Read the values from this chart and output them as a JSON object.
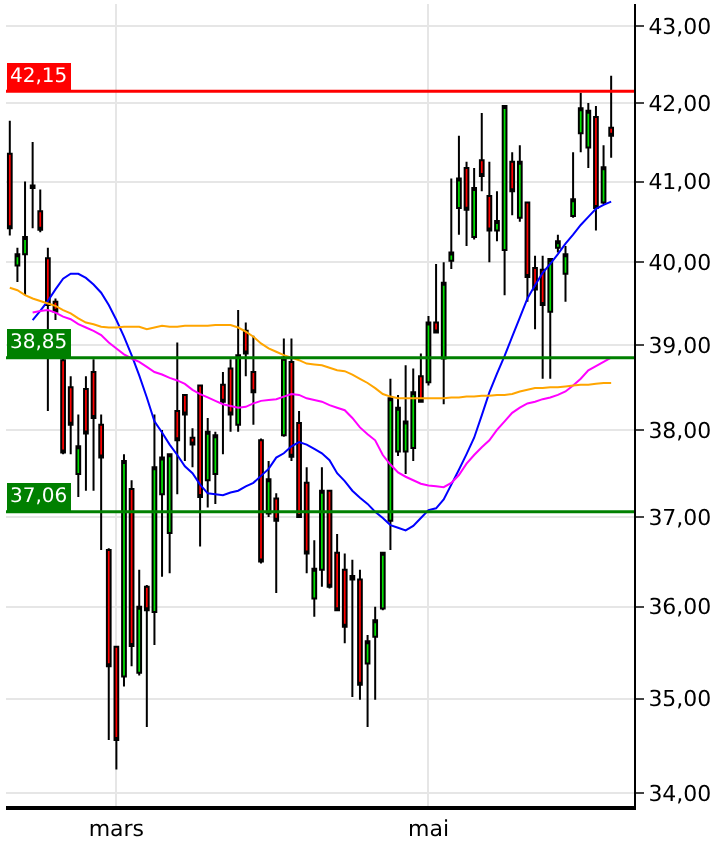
{
  "chart_data": {
    "type": "candlestick",
    "log": true,
    "grid": true,
    "categories": [
      null,
      null,
      null,
      null,
      null,
      null,
      null,
      null,
      null,
      null,
      null,
      null,
      null,
      null,
      "mars",
      null,
      null,
      null,
      null,
      null,
      null,
      null,
      null,
      null,
      null,
      null,
      null,
      null,
      null,
      null,
      null,
      null,
      null,
      null,
      null,
      null,
      null,
      null,
      null,
      null,
      null,
      null,
      null,
      null,
      null,
      null,
      null,
      null,
      null,
      null,
      null,
      null,
      null,
      null,
      null,
      "mai",
      null,
      null,
      null,
      null,
      null,
      null,
      null,
      null,
      null,
      null,
      null,
      null,
      null,
      null,
      null,
      null,
      null,
      null,
      null,
      null,
      null,
      null,
      null,
      null
    ],
    "ohlc": [
      [
        41.35,
        41.77,
        40.33,
        40.42
      ],
      [
        39.96,
        40.18,
        39.76,
        40.1
      ],
      [
        40.1,
        41.0,
        39.6,
        40.31
      ],
      [
        40.95,
        41.5,
        40.42,
        40.92
      ],
      [
        40.63,
        40.9,
        40.37,
        40.4
      ],
      [
        40.05,
        40.18,
        38.22,
        39.48
      ],
      [
        39.52,
        39.56,
        39.3,
        39.4
      ],
      [
        38.82,
        38.85,
        37.72,
        37.74
      ],
      [
        38.5,
        38.63,
        37.72,
        38.06
      ],
      [
        37.49,
        38.18,
        37.23,
        37.81
      ],
      [
        38.48,
        38.63,
        37.3,
        37.96
      ],
      [
        38.68,
        38.83,
        37.3,
        38.14
      ],
      [
        38.06,
        38.18,
        36.63,
        37.68
      ],
      [
        36.63,
        36.65,
        34.56,
        35.35
      ],
      [
        35.56,
        35.56,
        34.25,
        34.56
      ],
      [
        35.24,
        37.72,
        35.13,
        37.64
      ],
      [
        37.32,
        37.42,
        35.35,
        35.57
      ],
      [
        35.28,
        36.41,
        35.25,
        36.0
      ],
      [
        36.22,
        36.24,
        34.7,
        35.96
      ],
      [
        35.94,
        38.18,
        35.58,
        37.57
      ],
      [
        37.26,
        38.0,
        36.33,
        37.68
      ],
      [
        36.82,
        37.72,
        36.37,
        37.72
      ],
      [
        38.22,
        39.03,
        37.26,
        37.88
      ],
      [
        38.41,
        38.41,
        37.64,
        38.18
      ],
      [
        37.91,
        38.02,
        37.57,
        37.83
      ],
      [
        38.52,
        38.52,
        36.67,
        37.23
      ],
      [
        37.42,
        38.14,
        37.11,
        37.98
      ],
      [
        37.49,
        37.98,
        37.15,
        37.94
      ],
      [
        38.53,
        38.68,
        37.72,
        38.33
      ],
      [
        38.72,
        38.83,
        37.98,
        38.18
      ],
      [
        38.06,
        39.42,
        37.98,
        38.88
      ],
      [
        39.17,
        39.27,
        38.63,
        38.9
      ],
      [
        38.68,
        39.11,
        38.06,
        38.44
      ],
      [
        37.88,
        37.9,
        36.48,
        36.5
      ],
      [
        37.04,
        37.64,
        37.0,
        37.43
      ],
      [
        37.21,
        37.27,
        36.15,
        36.96
      ],
      [
        37.94,
        39.08,
        37.92,
        38.85
      ],
      [
        38.8,
        39.08,
        37.64,
        37.69
      ],
      [
        38.08,
        38.22,
        37.0,
        37.0
      ],
      [
        37.39,
        37.57,
        36.37,
        36.59
      ],
      [
        36.09,
        36.74,
        35.89,
        36.42
      ],
      [
        36.41,
        37.57,
        36.22,
        37.3
      ],
      [
        37.3,
        37.3,
        36.2,
        36.22
      ],
      [
        36.6,
        36.81,
        35.96,
        35.96
      ],
      [
        36.41,
        36.59,
        35.6,
        35.78
      ],
      [
        36.34,
        36.52,
        35.02,
        36.3
      ],
      [
        36.3,
        36.41,
        34.99,
        35.15
      ],
      [
        35.38,
        35.69,
        34.7,
        35.62
      ],
      [
        35.67,
        36.0,
        34.99,
        35.85
      ],
      [
        35.98,
        36.6,
        35.96,
        36.6
      ],
      [
        36.96,
        38.6,
        36.63,
        38.37
      ],
      [
        37.75,
        38.41,
        37.7,
        38.26
      ],
      [
        37.75,
        38.76,
        37.49,
        38.1
      ],
      [
        37.79,
        38.72,
        37.64,
        38.44
      ],
      [
        38.63,
        38.9,
        38.33,
        38.33
      ],
      [
        38.56,
        39.35,
        38.52,
        39.27
      ],
      [
        39.27,
        39.98,
        39.15,
        39.15
      ],
      [
        38.84,
        40.0,
        38.3,
        39.75
      ],
      [
        40.02,
        41.04,
        39.92,
        40.12
      ],
      [
        40.67,
        41.58,
        40.34,
        41.04
      ],
      [
        41.17,
        41.25,
        40.2,
        40.65
      ],
      [
        40.31,
        41.17,
        40.28,
        40.92
      ],
      [
        41.27,
        41.87,
        40.88,
        41.07
      ],
      [
        40.82,
        41.25,
        40.0,
        40.39
      ],
      [
        40.39,
        40.88,
        40.26,
        40.51
      ],
      [
        40.15,
        41.96,
        39.6,
        41.96
      ],
      [
        41.25,
        41.37,
        40.58,
        40.88
      ],
      [
        40.55,
        41.46,
        40.5,
        41.25
      ],
      [
        40.74,
        40.74,
        39.52,
        39.82
      ],
      [
        39.93,
        40.08,
        39.19,
        39.67
      ],
      [
        39.91,
        40.08,
        38.6,
        39.48
      ],
      [
        39.4,
        40.04,
        38.6,
        40.04
      ],
      [
        40.18,
        40.34,
        40.12,
        40.26
      ],
      [
        39.86,
        40.2,
        39.52,
        40.1
      ],
      [
        40.57,
        41.37,
        40.55,
        40.78
      ],
      [
        41.61,
        42.13,
        41.37,
        41.93
      ],
      [
        41.43,
        42.0,
        41.17,
        41.9
      ],
      [
        41.82,
        41.96,
        40.39,
        40.67
      ],
      [
        40.74,
        41.46,
        40.72,
        41.18
      ],
      [
        41.68,
        42.35,
        41.3,
        41.58
      ]
    ],
    "series": [
      {
        "type": "line",
        "color": "#0000ff",
        "values": [
          null,
          null,
          null,
          39.3,
          39.41,
          39.53,
          39.67,
          39.8,
          39.86,
          39.86,
          39.81,
          39.73,
          39.63,
          39.48,
          39.3,
          39.1,
          38.88,
          38.64,
          38.38,
          38.1,
          37.97,
          37.83,
          37.71,
          37.58,
          37.5,
          37.37,
          37.27,
          37.26,
          37.25,
          37.28,
          37.3,
          37.35,
          37.39,
          37.47,
          37.55,
          37.68,
          37.73,
          37.81,
          37.86,
          37.83,
          37.78,
          37.73,
          37.65,
          37.5,
          37.41,
          37.3,
          37.22,
          37.15,
          37.06,
          36.99,
          36.91,
          36.88,
          36.85,
          36.9,
          36.99,
          37.08,
          37.1,
          37.2,
          37.37,
          37.54,
          37.72,
          37.91,
          38.17,
          38.44,
          38.66,
          38.87,
          39.1,
          39.33,
          39.56,
          39.72,
          39.87,
          39.98,
          40.1,
          40.23,
          40.34,
          40.46,
          40.56,
          40.66,
          40.71,
          40.75
        ]
      },
      {
        "type": "line",
        "color": "#ff00ff",
        "values": [
          null,
          null,
          null,
          39.39,
          39.41,
          39.42,
          39.39,
          39.34,
          39.31,
          39.25,
          39.21,
          39.17,
          39.12,
          39.03,
          38.96,
          38.89,
          38.84,
          38.8,
          38.74,
          38.68,
          38.65,
          38.61,
          38.58,
          38.54,
          38.47,
          38.42,
          38.38,
          38.34,
          38.3,
          38.28,
          38.26,
          38.27,
          38.31,
          38.34,
          38.35,
          38.36,
          38.39,
          38.42,
          38.41,
          38.37,
          38.35,
          38.33,
          38.29,
          38.26,
          38.23,
          38.14,
          38.03,
          37.95,
          37.88,
          37.71,
          37.6,
          37.51,
          37.46,
          37.42,
          37.38,
          37.36,
          37.35,
          37.34,
          37.39,
          37.48,
          37.61,
          37.71,
          37.8,
          37.88,
          38.0,
          38.1,
          38.2,
          38.26,
          38.31,
          38.33,
          38.36,
          38.38,
          38.41,
          38.45,
          38.52,
          38.6,
          38.7,
          38.75,
          38.8,
          38.85
        ]
      },
      {
        "type": "line",
        "color": "#ffa500",
        "values": [
          39.69,
          39.66,
          39.6,
          39.56,
          39.53,
          39.5,
          39.47,
          39.42,
          39.38,
          39.32,
          39.27,
          39.25,
          39.22,
          39.21,
          39.21,
          39.22,
          39.22,
          39.22,
          39.19,
          39.21,
          39.23,
          39.22,
          39.22,
          39.23,
          39.23,
          39.23,
          39.23,
          39.24,
          39.24,
          39.24,
          39.21,
          39.16,
          39.1,
          39.02,
          38.96,
          38.92,
          38.88,
          38.85,
          38.82,
          38.78,
          38.77,
          38.76,
          38.73,
          38.7,
          38.69,
          38.65,
          38.6,
          38.55,
          38.49,
          38.42,
          38.39,
          38.37,
          38.37,
          38.37,
          38.37,
          38.37,
          38.37,
          38.37,
          38.38,
          38.38,
          38.39,
          38.39,
          38.4,
          38.4,
          38.41,
          38.41,
          38.42,
          38.45,
          38.47,
          38.49,
          38.49,
          38.5,
          38.5,
          38.51,
          38.52,
          38.53,
          38.53,
          38.54,
          38.55,
          38.55
        ]
      }
    ],
    "ref_lines": [
      {
        "axis": "y",
        "value": 42.15,
        "label": "42,15",
        "color": "#ff0000"
      },
      {
        "axis": "y",
        "value": 38.85,
        "label": "38,85",
        "color": "#008000"
      },
      {
        "axis": "y",
        "value": 37.06,
        "label": "37,06",
        "color": "#008000"
      }
    ],
    "ylim": [
      33.87,
      43.29
    ],
    "yticks": [
      {
        "value": 34,
        "label": "34,00"
      },
      {
        "value": 35,
        "label": "35,00"
      },
      {
        "value": 36,
        "label": "36,00"
      },
      {
        "value": 37,
        "label": "37,00"
      },
      {
        "value": 38,
        "label": "38,00"
      },
      {
        "value": 39,
        "label": "39,00"
      },
      {
        "value": 40,
        "label": "40,00"
      },
      {
        "value": 41,
        "label": "41,00"
      },
      {
        "value": 42,
        "label": "42,00"
      },
      {
        "value": 43,
        "label": "43,00"
      }
    ]
  }
}
